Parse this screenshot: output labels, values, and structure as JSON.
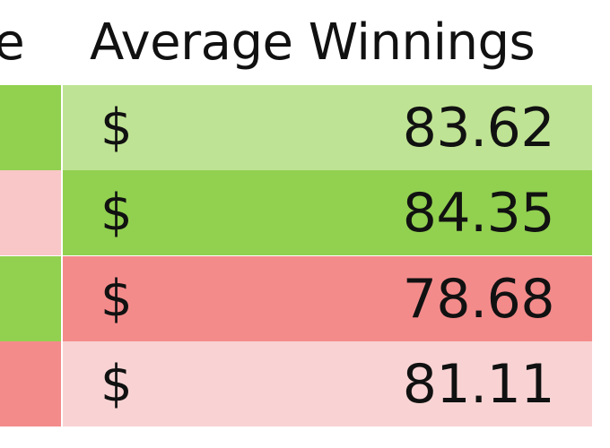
{
  "table": {
    "headers": {
      "partial_left": "re",
      "average_winnings": "Average Winnings"
    },
    "rows": [
      {
        "left_color": "#92d050",
        "value_color": "#bfe394",
        "currency": "$",
        "amount": "83.62"
      },
      {
        "left_color": "#f9c7c7",
        "value_color": "#92d050",
        "currency": "$",
        "amount": "84.35"
      },
      {
        "left_color": "#92d050",
        "value_color": "#f48b8b",
        "currency": "$",
        "amount": "78.68"
      },
      {
        "left_color": "#f48b8b",
        "value_color": "#f9d3d3",
        "currency": "$",
        "amount": "81.11"
      }
    ]
  }
}
